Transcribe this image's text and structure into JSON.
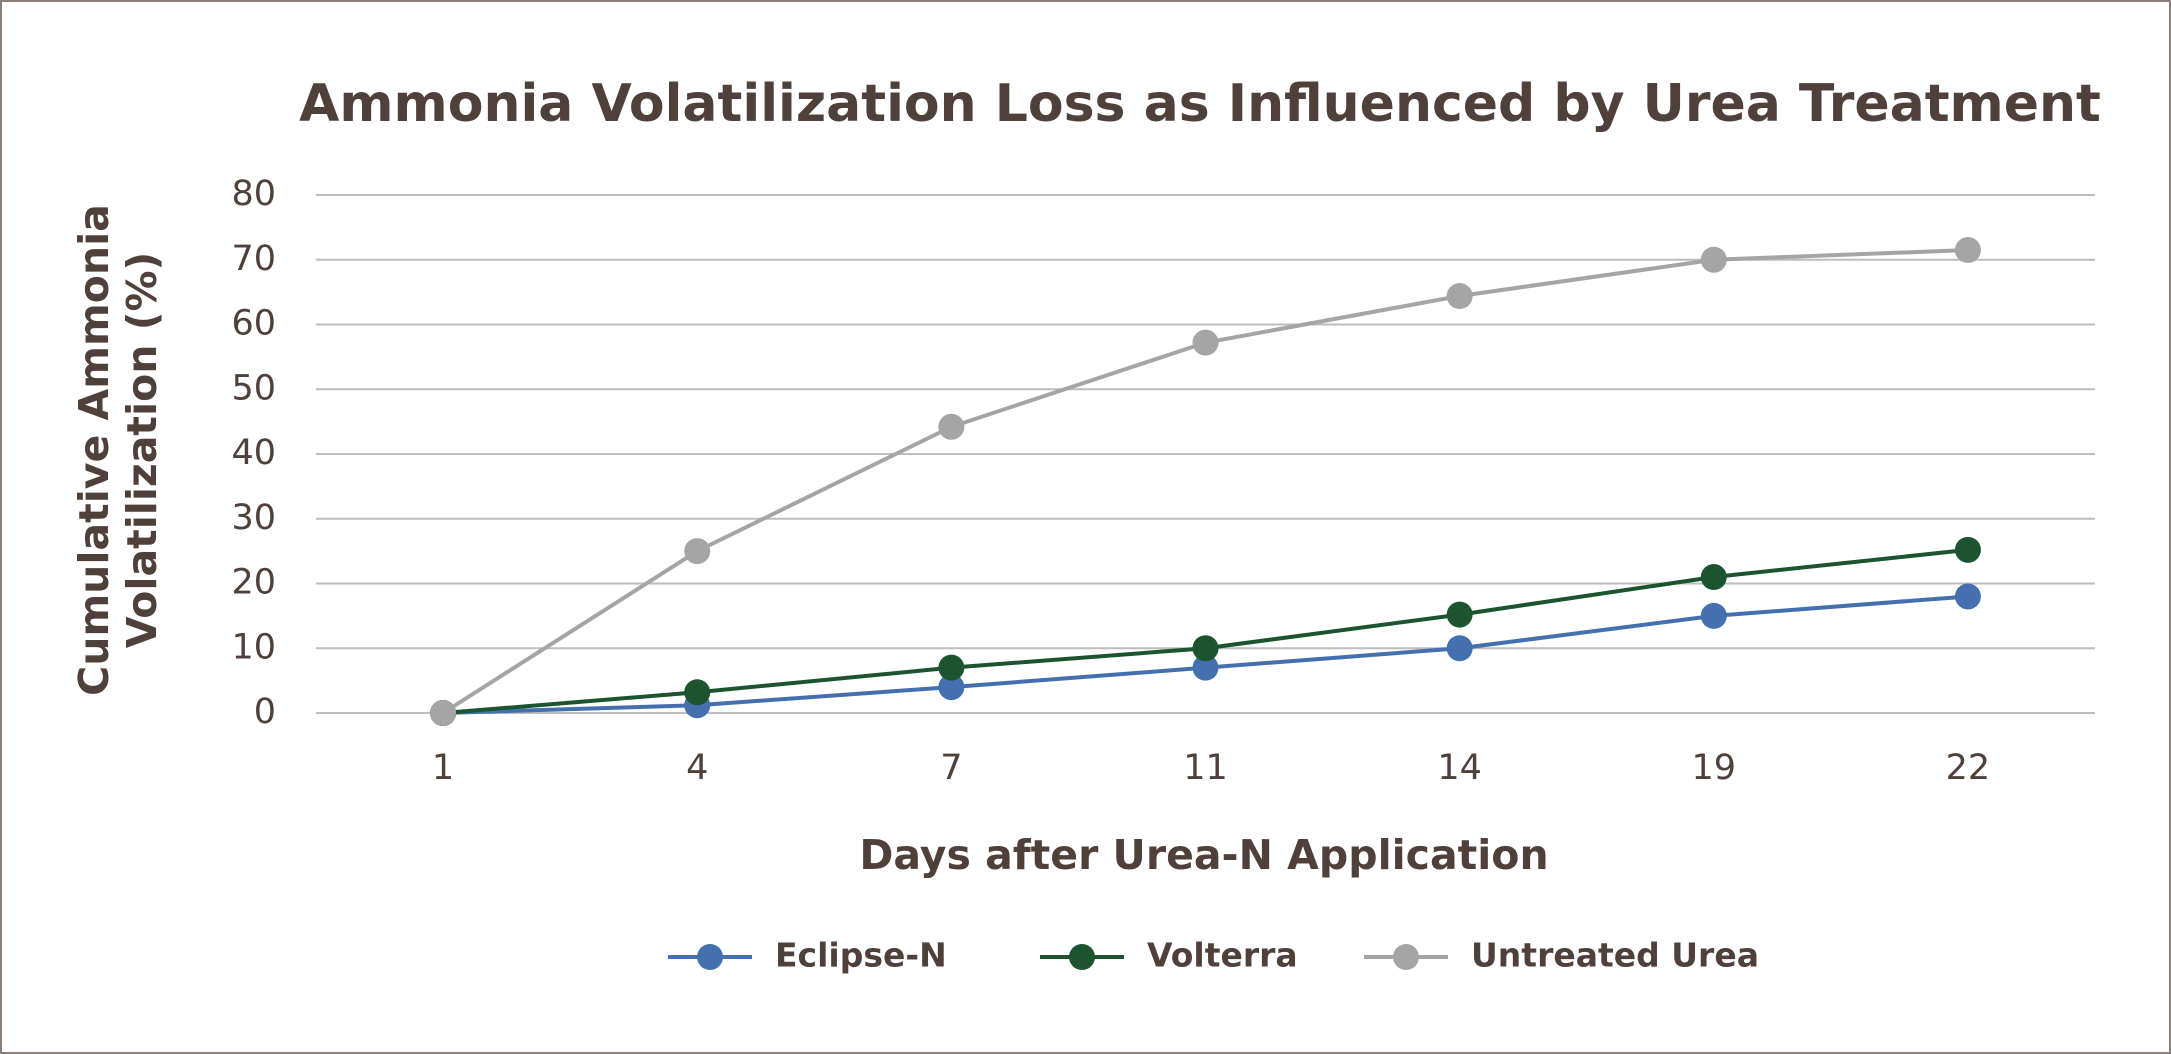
{
  "chart_data": {
    "type": "line",
    "title": "Ammonia Volatilization Loss as Influenced by Urea Treatment",
    "x_label": "Days after Urea-N Application",
    "y_label": [
      "Cumulative Ammonia",
      "Volatilization (%)"
    ],
    "categories": [
      "1",
      "4",
      "7",
      "11",
      "14",
      "19",
      "22"
    ],
    "series": [
      {
        "name": "Eclipse-N",
        "color": "#4470b0",
        "values": [
          0,
          1.2,
          4,
          7,
          10,
          15,
          18
        ]
      },
      {
        "name": "Volterra",
        "color": "#1c5430",
        "values": [
          0,
          3.2,
          7,
          10,
          15.2,
          21,
          25.2
        ]
      },
      {
        "name": "Untreated Urea",
        "color": "#a5a5a5",
        "values": [
          0,
          25,
          44.2,
          57.2,
          64.4,
          70,
          71.5
        ]
      }
    ],
    "ylim": [
      0,
      80
    ],
    "yticks": [
      0,
      10,
      20,
      30,
      40,
      50,
      60,
      70,
      80
    ],
    "grid": true,
    "legend": "bottom"
  }
}
